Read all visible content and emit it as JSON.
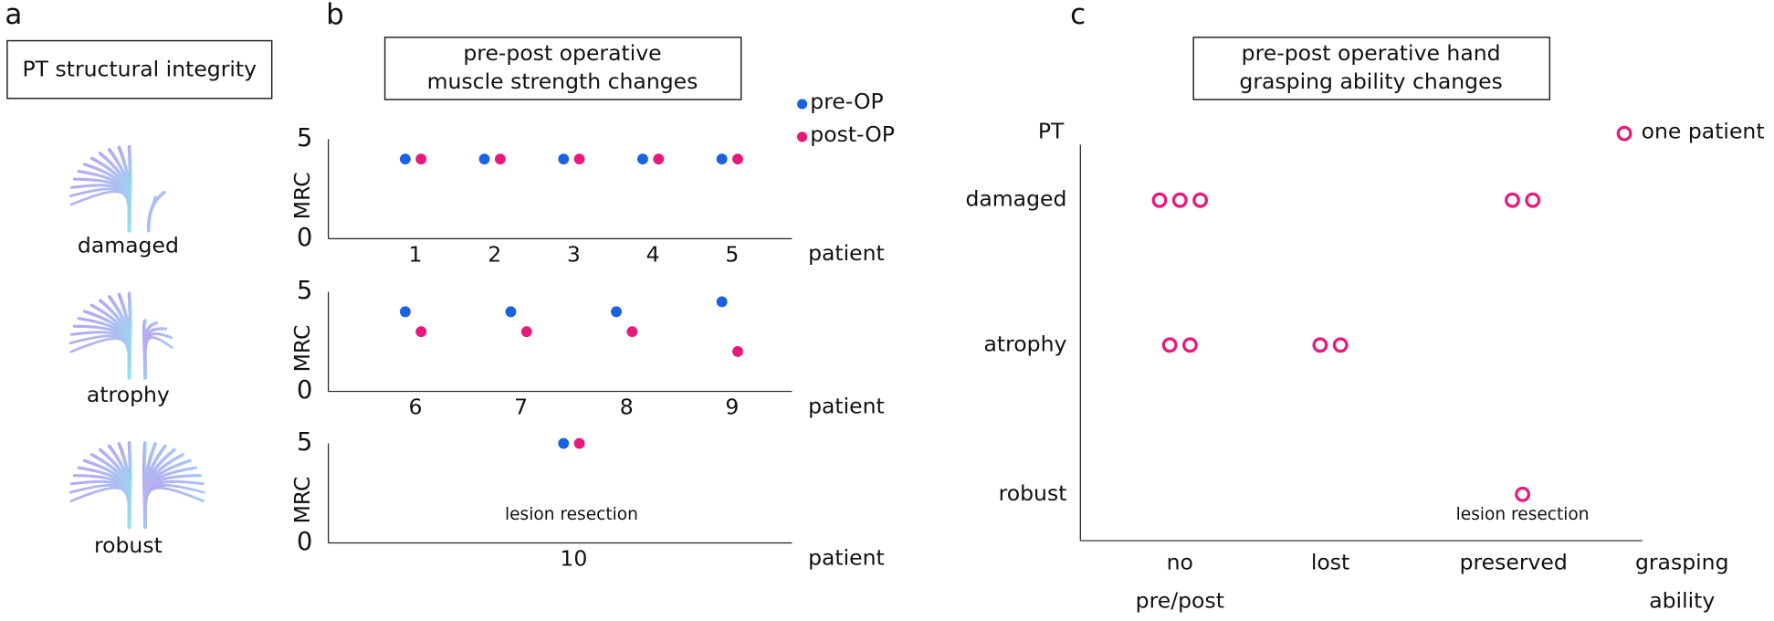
{
  "panel_labels": [
    "a",
    "b",
    "c"
  ],
  "panel_a": {
    "title": "PT structural integrity",
    "labels": [
      "damaged",
      "atrophy",
      "robust"
    ]
  },
  "chart_data": [
    {
      "type": "scatter",
      "title": [
        "pre-post operative",
        "muscle strength changes"
      ],
      "series": [
        {
          "name": "pre-OP",
          "color": "#1b62e0"
        },
        {
          "name": "post-OP",
          "color": "#e8197c"
        }
      ],
      "subplots": [
        {
          "categories": [
            "1",
            "2",
            "3",
            "4",
            "5"
          ],
          "values": [
            [
              4,
              4,
              4,
              4,
              4
            ],
            [
              4,
              4,
              4,
              4,
              4
            ]
          ],
          "ylim": [
            0,
            5
          ],
          "yticks": [
            0,
            5
          ],
          "ylabel": "MRC",
          "xlabel": "patient"
        },
        {
          "categories": [
            "6",
            "7",
            "8",
            "9"
          ],
          "values": [
            [
              4,
              4,
              4,
              4.5
            ],
            [
              3,
              3,
              3,
              2
            ]
          ],
          "ylim": [
            0,
            5
          ],
          "yticks": [
            0,
            5
          ],
          "ylabel": "MRC",
          "xlabel": "patient"
        },
        {
          "categories": [
            "10"
          ],
          "values": [
            [
              5
            ],
            [
              5
            ]
          ],
          "ylim": [
            0,
            5
          ],
          "yticks": [
            0,
            5
          ],
          "ylabel": "MRC",
          "xlabel": "patient",
          "annotation": "lesion resection"
        }
      ]
    },
    {
      "type": "dot",
      "title": [
        "pre-post operative hand",
        "grasping ability changes"
      ],
      "legend": "one patient",
      "color": "#e8197c",
      "ylabel": "PT",
      "xlabel": [
        "grasping",
        "ability"
      ],
      "y_categories": [
        "damaged",
        "atrophy",
        "robust"
      ],
      "x_categories": [
        [
          "no",
          "pre/post"
        ],
        [
          "lost"
        ],
        [
          "preserved"
        ]
      ],
      "counts": [
        [
          3,
          0,
          2
        ],
        [
          2,
          2,
          0
        ],
        [
          0,
          0,
          1
        ]
      ],
      "annotation": "lesion resection"
    }
  ]
}
